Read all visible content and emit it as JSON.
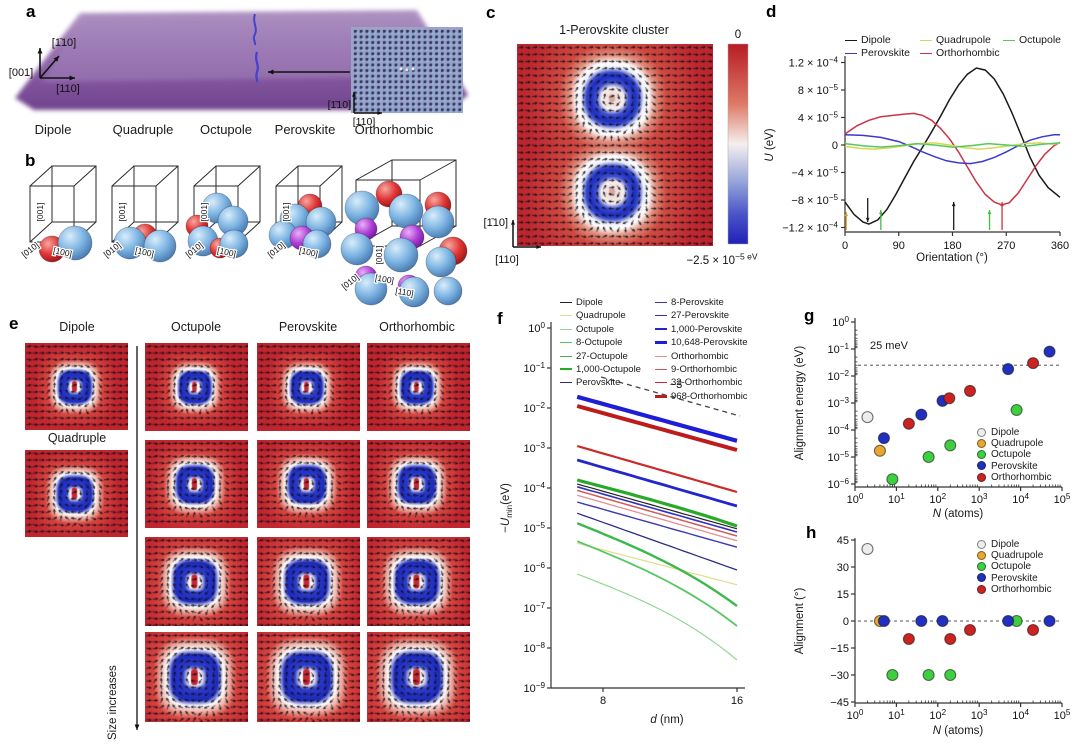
{
  "palette": {
    "heat_red": "#c2272c",
    "heat_blue": "#1f2abe",
    "slab_purple": "#8a5fa5",
    "sphere_blue": "#7db4e2",
    "sphere_red": "#e03535",
    "sphere_purple": "#b040d8"
  },
  "panels": {
    "a": {
      "letter": "a",
      "axis_up": "[001]",
      "axis_diag": "[1̄10]",
      "axis_right": "[110]",
      "inset_axis_v": "[1̄10]",
      "inset_axis_h": "[110]",
      "categories": [
        "Dipole",
        "Quadruple",
        "Octupole",
        "Perovskite",
        "Orthorhombic"
      ]
    },
    "b": {
      "letter": "b",
      "edge_labels": [
        "[001]",
        "[010]",
        "[100]"
      ],
      "extra_label": "[110]"
    },
    "c": {
      "letter": "c",
      "title": "1-Perovskite cluster",
      "colorbar_top": "0",
      "colorbar_bottom": "−2.5 × 10^−5 eV",
      "axis_v": "[1̄10]",
      "axis_h": "[110]"
    },
    "d": {
      "letter": "d",
      "ylabel": {
        "var": "U",
        "post": " (eV)"
      },
      "xlabel": "Orientation (°)",
      "yticks": [
        "1.2 × 10^−4",
        "8 × 10^−5",
        "4 × 10^−5",
        "0",
        "−4 × 10^−5",
        "−8 × 10^−5",
        "−1.2 × 10^−4"
      ],
      "xticks": [
        "0",
        "90",
        "180",
        "270",
        "360"
      ],
      "legend": [
        {
          "label": "Dipole",
          "color": "#1a1a1a"
        },
        {
          "label": "Quadrupole",
          "color": "#d8d855"
        },
        {
          "label": "Octupole",
          "color": "#55c860"
        },
        {
          "label": "Perovskite",
          "color": "#3b3bc8"
        },
        {
          "label": "Orthorhombic",
          "color": "#cc3344"
        }
      ],
      "unit": "1e-5 eV",
      "series": [
        {
          "name": "Dipole",
          "color": "#1a1a1a",
          "points": [
            [
              0,
              -8.3
            ],
            [
              15,
              -10.1
            ],
            [
              30,
              -11.2
            ],
            [
              40,
              -11.5
            ],
            [
              55,
              -10.9
            ],
            [
              70,
              -9.4
            ],
            [
              85,
              -7.2
            ],
            [
              100,
              -4.8
            ],
            [
              115,
              -2.4
            ],
            [
              130,
              -0.3
            ],
            [
              145,
              1.9
            ],
            [
              160,
              4.2
            ],
            [
              175,
              6.6
            ],
            [
              190,
              8.7
            ],
            [
              205,
              10.3
            ],
            [
              220,
              11.2
            ],
            [
              235,
              10.9
            ],
            [
              250,
              9.6
            ],
            [
              265,
              7.4
            ],
            [
              280,
              4.6
            ],
            [
              295,
              1.4
            ],
            [
              310,
              -1.8
            ],
            [
              325,
              -4.4
            ],
            [
              340,
              -6.2
            ],
            [
              360,
              -7.6
            ]
          ]
        },
        {
          "name": "Orthorhombic",
          "color": "#cc3344",
          "points": [
            [
              0,
              1.6
            ],
            [
              20,
              2.8
            ],
            [
              40,
              3.6
            ],
            [
              60,
              4.1
            ],
            [
              80,
              4.3
            ],
            [
              100,
              4.5
            ],
            [
              115,
              4.6
            ],
            [
              130,
              4.3
            ],
            [
              145,
              3.6
            ],
            [
              160,
              2.4
            ],
            [
              175,
              0.9
            ],
            [
              190,
              -1.0
            ],
            [
              205,
              -3.2
            ],
            [
              220,
              -5.4
            ],
            [
              235,
              -7.2
            ],
            [
              250,
              -8.3
            ],
            [
              262,
              -8.7
            ],
            [
              275,
              -8.4
            ],
            [
              290,
              -7.0
            ],
            [
              305,
              -5.0
            ],
            [
              320,
              -3.0
            ],
            [
              335,
              -1.3
            ],
            [
              350,
              -0.1
            ],
            [
              360,
              0.4
            ]
          ]
        },
        {
          "name": "Perovskite",
          "color": "#3b3bc8",
          "points": [
            [
              0,
              1.5
            ],
            [
              30,
              1.4
            ],
            [
              60,
              1.1
            ],
            [
              90,
              0.5
            ],
            [
              110,
              -0.2
            ],
            [
              130,
              -1.0
            ],
            [
              150,
              -1.7
            ],
            [
              170,
              -2.3
            ],
            [
              190,
              -2.6
            ],
            [
              210,
              -2.7
            ],
            [
              230,
              -2.4
            ],
            [
              250,
              -1.8
            ],
            [
              270,
              -1.0
            ],
            [
              290,
              -0.1
            ],
            [
              310,
              0.7
            ],
            [
              330,
              1.2
            ],
            [
              350,
              1.5
            ],
            [
              360,
              1.5
            ]
          ]
        },
        {
          "name": "Quadrupole",
          "color": "#d8d855",
          "points": [
            [
              0,
              -0.2
            ],
            [
              25,
              -0.5
            ],
            [
              50,
              -0.6
            ],
            [
              75,
              -0.4
            ],
            [
              100,
              -0.1
            ],
            [
              125,
              0.2
            ],
            [
              150,
              0.3
            ],
            [
              175,
              0.0
            ],
            [
              200,
              -0.4
            ],
            [
              225,
              -0.6
            ],
            [
              250,
              -0.4
            ],
            [
              275,
              -0.1
            ],
            [
              300,
              0.2
            ],
            [
              325,
              0.3
            ],
            [
              350,
              0.1
            ],
            [
              360,
              0.3
            ]
          ]
        },
        {
          "name": "Octupole",
          "color": "#55c860",
          "points": [
            [
              0,
              0.2
            ],
            [
              30,
              -0.1
            ],
            [
              60,
              -0.3
            ],
            [
              90,
              -0.1
            ],
            [
              120,
              0.2
            ],
            [
              150,
              0.0
            ],
            [
              180,
              -0.3
            ],
            [
              210,
              -0.1
            ],
            [
              240,
              0.2
            ],
            [
              270,
              0.0
            ],
            [
              300,
              -0.2
            ],
            [
              330,
              0.1
            ],
            [
              360,
              0.3
            ]
          ]
        }
      ],
      "min_arrows": [
        {
          "deg": 2,
          "color": "#d8a030",
          "dir": "up",
          "len": 18
        },
        {
          "deg": 38,
          "color": "#1a1a1a",
          "dir": "down",
          "len": 24
        },
        {
          "deg": 60,
          "color": "#44bb44",
          "dir": "up",
          "len": 20
        },
        {
          "deg": 182,
          "color": "#1a1a1a",
          "dir": "up",
          "len": 28
        },
        {
          "deg": 242,
          "color": "#44bb44",
          "dir": "up",
          "len": 20
        },
        {
          "deg": 263,
          "color": "#cc3344",
          "dir": "up",
          "len": 28
        }
      ]
    },
    "e": {
      "letter": "e",
      "headers": [
        "Dipole",
        "Octupole",
        "Perovskite",
        "Orthorhombic"
      ],
      "sub_label": "Quadruple",
      "size_label": "Size increases"
    },
    "f": {
      "letter": "f",
      "ylabel": {
        "pre": "−",
        "var": "U",
        "sub": "min",
        "post": "(eV)"
      },
      "xlabel": {
        "var": "d",
        "post": " (nm)"
      },
      "yticks": [
        "10^0",
        "10^−1",
        "10^−2",
        "10^−3",
        "10^−4",
        "10^−5",
        "10^−6",
        "10^−7",
        "10^−8",
        "10^−9"
      ],
      "xticks": [
        "8",
        "16"
      ],
      "slope_label": "−3",
      "x_range_nm": [
        7,
        16
      ],
      "series": [
        {
          "name": "Dipole",
          "color": "#222222",
          "lw": 1.2,
          "y7": -3.9,
          "y16": -5.02,
          "bend": 0
        },
        {
          "name": "Quadrupole",
          "color": "#e0dc8c",
          "lw": 1.2,
          "y7": -5.38,
          "y16": -6.42,
          "bend": 0
        },
        {
          "name": "Octupole",
          "color": "#90d890",
          "lw": 1.2,
          "y7": -6.15,
          "y16": -8.3,
          "bend": -0.6
        },
        {
          "name": "8-Octupole",
          "color": "#55c863",
          "lw": 1.8,
          "y7": -5.33,
          "y16": -7.45,
          "bend": -0.5
        },
        {
          "name": "27-Octupole",
          "color": "#3cb84c",
          "lw": 2.4,
          "y7": -4.88,
          "y16": -6.95,
          "bend": -0.45
        },
        {
          "name": "1,000-Octupole",
          "color": "#2aaa2a",
          "lw": 3.2,
          "y7": -3.8,
          "y16": -4.95,
          "bend": -0.1
        },
        {
          "name": "Perovskite",
          "color": "#2c2c86",
          "lw": 1.3,
          "y7": -4.63,
          "y16": -6.05,
          "bend": 0
        },
        {
          "name": "8-Perovskite",
          "color": "#3939b0",
          "lw": 1.4,
          "y7": -4.35,
          "y16": -5.48,
          "bend": 0
        },
        {
          "name": "27-Perovskite",
          "color": "#3030c0",
          "lw": 1.6,
          "y7": -3.97,
          "y16": -5.1,
          "bend": 0
        },
        {
          "name": "1,000-Perovskite",
          "color": "#2525cd",
          "lw": 2.8,
          "y7": -3.3,
          "y16": -4.45,
          "bend": 0
        },
        {
          "name": "10,648-Perovskite",
          "color": "#1e1ed6",
          "lw": 4.2,
          "y7": -1.72,
          "y16": -2.82,
          "bend": 0
        },
        {
          "name": "Orthorhombic",
          "color": "#e29090",
          "lw": 1.3,
          "y7": -4.18,
          "y16": -5.32,
          "bend": 0
        },
        {
          "name": "9-Orthorhombic",
          "color": "#cd5a5a",
          "lw": 1.5,
          "y7": -4.06,
          "y16": -5.2,
          "bend": 0
        },
        {
          "name": "32-Orthorhombic",
          "color": "#cc2929",
          "lw": 2.2,
          "y7": -2.95,
          "y16": -4.1,
          "bend": 0
        },
        {
          "name": "968-Orthorhombic",
          "color": "#bc1c1c",
          "lw": 4.0,
          "y7": -1.95,
          "y16": -3.05,
          "bend": 0
        }
      ]
    },
    "g": {
      "letter": "g",
      "ylabel": "Alignment energy (eV)",
      "xlabel": {
        "var": "N",
        "post": " (atoms)"
      },
      "yticks": [
        "10^0",
        "10^−1",
        "10^−2",
        "10^−3",
        "10^−4",
        "10^−5",
        "10^−6"
      ],
      "xticks": [
        "10^0",
        "10^1",
        "10^2",
        "10^3",
        "10^4",
        "10^5"
      ],
      "threshold_label": "25 meV",
      "threshold_ev": 0.025,
      "legend": [
        {
          "label": "Dipole",
          "color": "#ededed"
        },
        {
          "label": "Quadrupole",
          "color": "#e8a72e"
        },
        {
          "label": "Octupole",
          "color": "#3ecf3e"
        },
        {
          "label": "Perovskite",
          "color": "#2130c0"
        },
        {
          "label": "Orthorhombic",
          "color": "#cc2222"
        }
      ],
      "series": [
        {
          "name": "Dipole",
          "color": "#ededed",
          "points": [
            [
              2,
              0.0003
            ]
          ]
        },
        {
          "name": "Quadrupole",
          "color": "#e8a72e",
          "points": [
            [
              4,
              1.7e-05
            ]
          ]
        },
        {
          "name": "Octupole",
          "color": "#3ecf3e",
          "points": [
            [
              8,
              1.5e-06
            ],
            [
              60,
              1e-05
            ],
            [
              200,
              2.7e-05
            ],
            [
              8000,
              0.00055
            ]
          ]
        },
        {
          "name": "Perovskite",
          "color": "#2130c0",
          "points": [
            [
              5,
              5e-05
            ],
            [
              40,
              0.00037
            ],
            [
              130,
              0.0012
            ],
            [
              5000,
              0.018
            ],
            [
              50000,
              0.08
            ]
          ]
        },
        {
          "name": "Orthorhombic",
          "color": "#cc2222",
          "points": [
            [
              20,
              0.00017
            ],
            [
              190,
              0.0015
            ],
            [
              600,
              0.0028
            ],
            [
              20000,
              0.03
            ]
          ]
        }
      ]
    },
    "h": {
      "letter": "h",
      "ylabel": "Alignment (°)",
      "xlabel": {
        "var": "N",
        "post": " (atoms)"
      },
      "yticks": [
        "45",
        "30",
        "15",
        "0",
        "−15",
        "−30",
        "−45"
      ],
      "xticks": [
        "10^0",
        "10^1",
        "10^2",
        "10^3",
        "10^4",
        "10^5"
      ],
      "legend": [
        {
          "label": "Dipole",
          "color": "#ededed"
        },
        {
          "label": "Quadrupole",
          "color": "#e8a72e"
        },
        {
          "label": "Octupole",
          "color": "#3ecf3e"
        },
        {
          "label": "Perovskite",
          "color": "#2130c0"
        },
        {
          "label": "Orthorhombic",
          "color": "#cc2222"
        }
      ],
      "series": [
        {
          "name": "Dipole",
          "color": "#ededed",
          "points": [
            [
              2,
              40
            ]
          ]
        },
        {
          "name": "Quadrupole",
          "color": "#e8a72e",
          "points": [
            [
              4,
              0
            ]
          ]
        },
        {
          "name": "Octupole",
          "color": "#3ecf3e",
          "points": [
            [
              8,
              -30
            ],
            [
              60,
              -30
            ],
            [
              200,
              -30
            ],
            [
              8000,
              0
            ]
          ]
        },
        {
          "name": "Perovskite",
          "color": "#2130c0",
          "points": [
            [
              5,
              0
            ],
            [
              40,
              0
            ],
            [
              130,
              0
            ],
            [
              5000,
              0
            ],
            [
              50000,
              0
            ]
          ]
        },
        {
          "name": "Orthorhombic",
          "color": "#cc2222",
          "points": [
            [
              20,
              -10
            ],
            [
              200,
              -10
            ],
            [
              600,
              -5
            ],
            [
              20000,
              -5
            ]
          ]
        }
      ]
    }
  }
}
